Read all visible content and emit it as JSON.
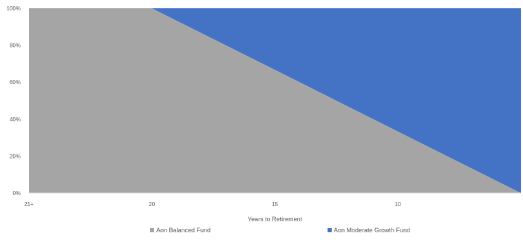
{
  "chart_data": {
    "type": "area",
    "stacked": true,
    "percent_stacked": true,
    "title": "",
    "xlabel": "Years to Retirement",
    "ylabel": "",
    "x_ticks": [
      "21+",
      "20",
      "15",
      "10"
    ],
    "x_tick_positions": [
      21,
      20,
      15,
      10
    ],
    "x_range": [
      25,
      5
    ],
    "y_ticks": [
      "0%",
      "20%",
      "40%",
      "60%",
      "80%",
      "100%"
    ],
    "ylim": [
      0,
      100
    ],
    "grid": false,
    "legend_position": "bottom",
    "x": [
      25,
      21,
      20,
      15,
      10,
      5
    ],
    "series": [
      {
        "name": "Aon Balanced Fund",
        "color": "#a5a5a5",
        "values": [
          100,
          100,
          100,
          66.7,
          33.3,
          0
        ]
      },
      {
        "name": "Aon Moderate Growth Fund",
        "color": "#4472c4",
        "values": [
          0,
          0,
          0,
          33.3,
          66.7,
          100
        ]
      }
    ]
  }
}
